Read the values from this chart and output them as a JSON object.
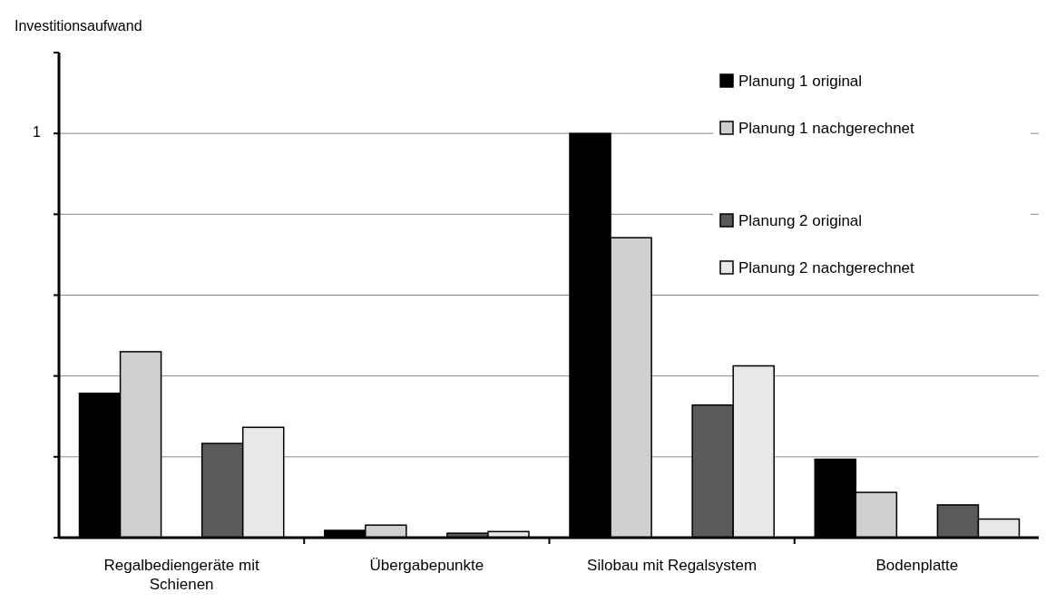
{
  "chart_data": {
    "type": "bar",
    "ylabel": "Investitionsaufwand",
    "categories": [
      "Regalbediengeräte mit Schienen",
      "Übergabepunkte",
      "Silobau mit Regalsystem",
      "Bodenplatte"
    ],
    "series": [
      {
        "name": "Planung 1 original",
        "color": "#000000",
        "values": [
          0.357,
          0.018,
          1.0,
          0.194
        ]
      },
      {
        "name": "Planung 1 nachgerechnet",
        "color": "#d0d0d0",
        "values": [
          0.46,
          0.031,
          0.742,
          0.112
        ]
      },
      {
        "name": "Planung 2 original",
        "color": "#5a5a5a",
        "values": [
          0.233,
          0.011,
          0.328,
          0.081
        ]
      },
      {
        "name": "Planung 2 nachgerechnet",
        "color": "#e8e8e8",
        "values": [
          0.273,
          0.015,
          0.425,
          0.046
        ]
      }
    ],
    "ylim": [
      0,
      1.2
    ],
    "yticks": [
      {
        "value": 0,
        "label": null
      },
      {
        "value": 0.2,
        "label": null
      },
      {
        "value": 0.4,
        "label": null
      },
      {
        "value": 0.6,
        "label": null
      },
      {
        "value": 0.8,
        "label": null
      },
      1,
      {
        "value": 1.2,
        "label": null
      }
    ],
    "grid": "y",
    "legend": "top right"
  }
}
